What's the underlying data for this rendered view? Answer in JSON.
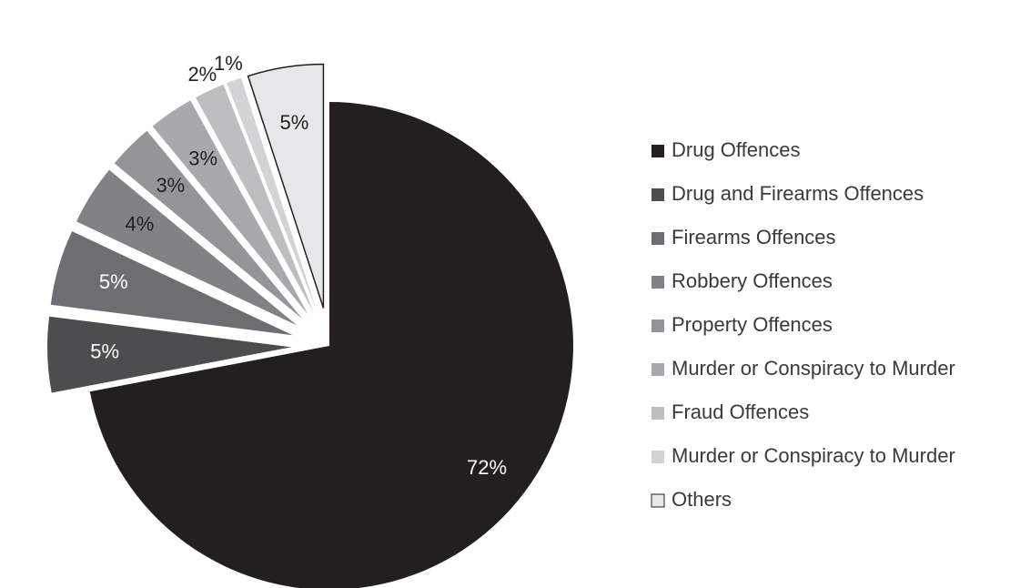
{
  "chart_data": {
    "type": "pie",
    "title": "",
    "slices": [
      {
        "label": "Drug Offences",
        "value": 72,
        "value_label": "72%",
        "color": "#231f20",
        "label_color": "#ffffff",
        "exploded": false,
        "outlined": false
      },
      {
        "label": "Drug and Firearms Offences",
        "value": 5,
        "value_label": "5%",
        "color": "#4d4d4f",
        "label_color": "#ffffff",
        "exploded": true,
        "outlined": false
      },
      {
        "label": "Firearms Offences",
        "value": 5,
        "value_label": "5%",
        "color": "#6d6e71",
        "label_color": "#ffffff",
        "exploded": true,
        "outlined": false
      },
      {
        "label": "Robbery Offences",
        "value": 4,
        "value_label": "4%",
        "color": "#808285",
        "label_color": "#231f20",
        "exploded": true,
        "outlined": false
      },
      {
        "label": "Property Offences",
        "value": 3,
        "value_label": "3%",
        "color": "#939598",
        "label_color": "#231f20",
        "exploded": true,
        "outlined": false
      },
      {
        "label": "Murder or Conspiracy to Murder",
        "value": 3,
        "value_label": "3%",
        "color": "#a7a9ac",
        "label_color": "#231f20",
        "exploded": true,
        "outlined": false
      },
      {
        "label": "Fraud Offences",
        "value": 2,
        "value_label": "2%",
        "color": "#bcbec0",
        "label_color": "#231f20",
        "exploded": true,
        "outlined": false
      },
      {
        "label": "Murder or Conspiracy to Murder",
        "value": 1,
        "value_label": "1%",
        "color": "#d1d3d4",
        "label_color": "#231f20",
        "exploded": true,
        "outlined": false
      },
      {
        "label": "Others",
        "value": 5,
        "value_label": "5%",
        "color": "#e6e7e8",
        "label_color": "#231f20",
        "exploded": true,
        "outlined": true
      }
    ],
    "legend_position": "right"
  }
}
